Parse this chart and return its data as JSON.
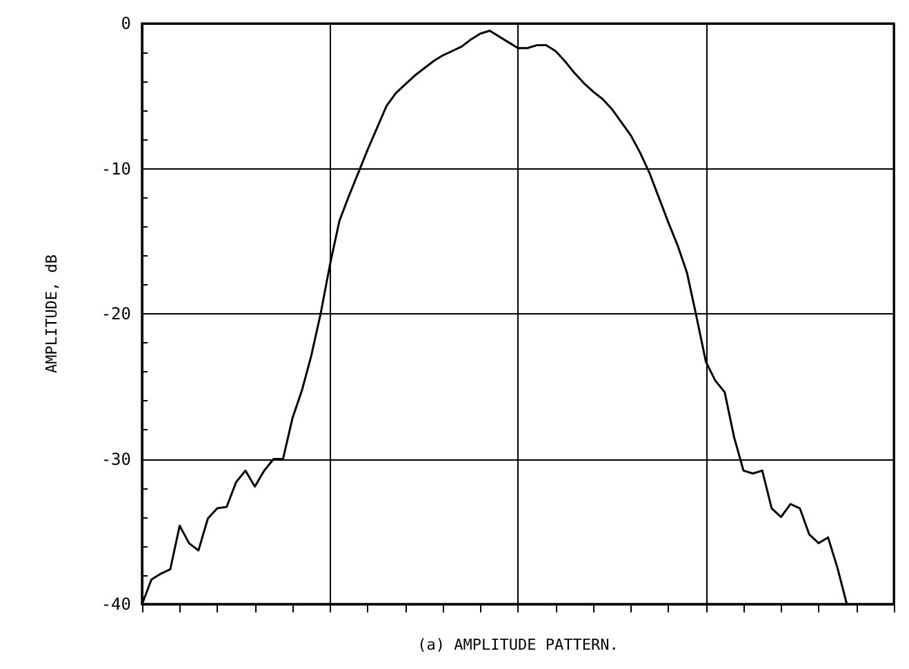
{
  "chart_data": {
    "type": "line",
    "xlabel": "(a) AMPLITUDE PATTERN.",
    "ylabel": "AMPLITUDE, dB",
    "categories": [
      null,
      null,
      null,
      null,
      null,
      null,
      null,
      null,
      null,
      null,
      null,
      null,
      null,
      null,
      null,
      null,
      null,
      null,
      null,
      null,
      null,
      null,
      null,
      null,
      null,
      null,
      null,
      null,
      null,
      null,
      null,
      null,
      null,
      null,
      null,
      null,
      null,
      null,
      null,
      null,
      null,
      null,
      null,
      null,
      null,
      null,
      null,
      null,
      null,
      null,
      null,
      null,
      null,
      null,
      null,
      null,
      null,
      null,
      null,
      null,
      null,
      null,
      null,
      null,
      null,
      null,
      null,
      null,
      null,
      null,
      null,
      null,
      null,
      null,
      null,
      null,
      null,
      null,
      null,
      null,
      null
    ],
    "series": [
      {
        "color": "#000000",
        "values": [
          -40,
          -38.3,
          -37.9,
          -37.6,
          -34.6,
          -35.8,
          -36.3,
          -34.1,
          -33.4,
          -33.3,
          -31.6,
          -30.8,
          -31.9,
          -30.8,
          -30,
          -30,
          -27.2,
          -25.3,
          -22.9,
          -20,
          -16.6,
          -13.6,
          -11.9,
          -10.3,
          -8.7,
          -7.2,
          -5.7,
          -4.8,
          -4.2,
          -3.6,
          -3.1,
          -2.6,
          -2.2,
          -1.9,
          -1.6,
          -1.1,
          -0.7,
          -0.5,
          -0.9,
          -1.3,
          -1.7,
          -1.7,
          -1.5,
          -1.5,
          -1.9,
          -2.6,
          -3.4,
          -4.1,
          -4.7,
          -5.2,
          -5.9,
          -6.8,
          -7.7,
          -8.9,
          -10.3,
          -12,
          -13.7,
          -15.3,
          -17.2,
          -20.2,
          -23.3,
          -24.6,
          -25.4,
          -28.5,
          -30.8,
          -31,
          -30.8,
          -33.4,
          -34,
          -33.1,
          -33.4,
          -35.2,
          -35.8,
          -35.4,
          -37.5,
          -40,
          null,
          null,
          null,
          null,
          null
        ]
      }
    ],
    "ylim": [
      -40,
      0
    ],
    "yticks": [
      0,
      -10,
      -20,
      -30,
      -40
    ],
    "grid": true,
    "line_style": "solid",
    "tick_labels": "y"
  }
}
